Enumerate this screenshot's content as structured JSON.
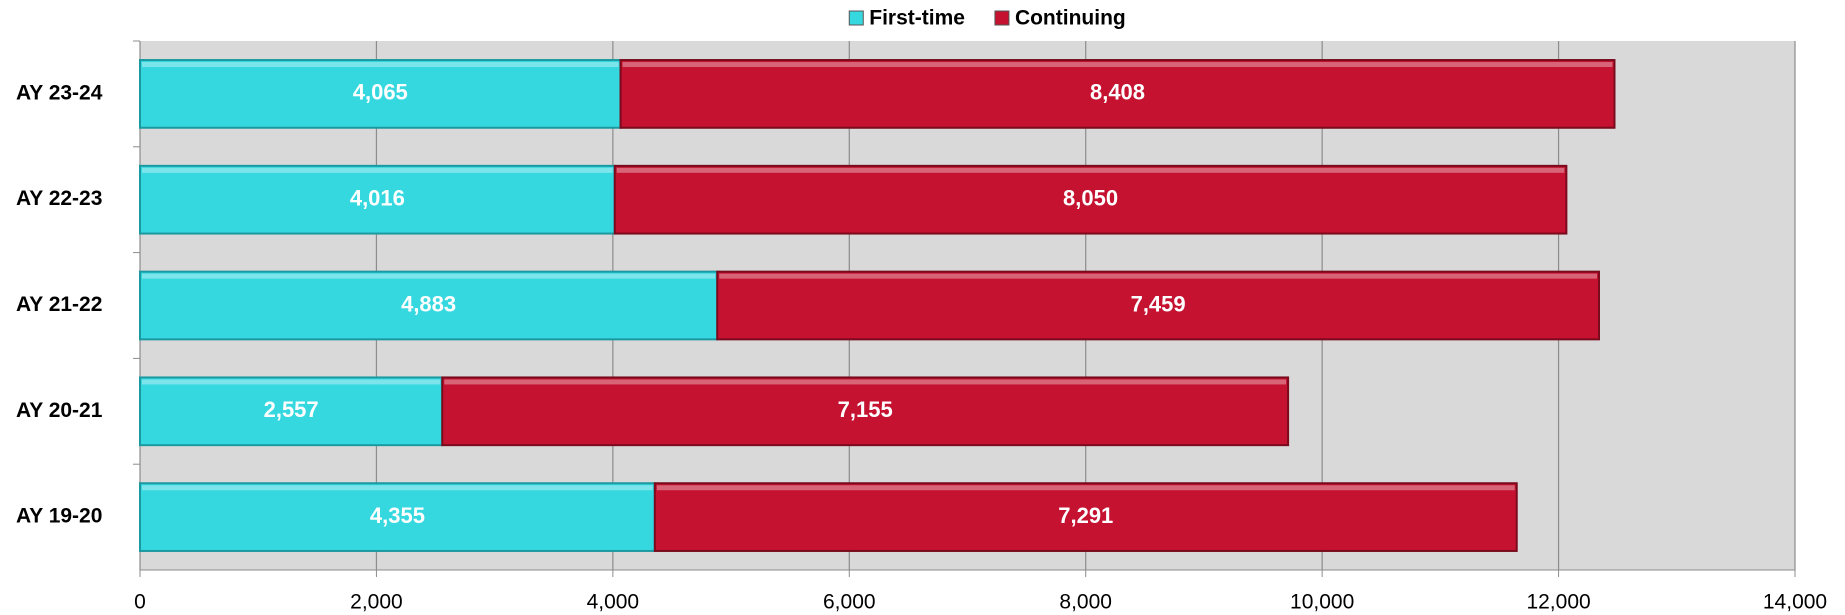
{
  "chart_data": {
    "type": "stacked-barh",
    "categories": [
      "AY 23-24",
      "AY 22-23",
      "AY 21-22",
      "AY 20-21",
      "AY 19-20"
    ],
    "series": [
      {
        "name": "First-time",
        "color": "#36d8e0",
        "values": [
          4065,
          4016,
          4883,
          2557,
          4355
        ],
        "value_labels": [
          "4,065",
          "4,016",
          "4,883",
          "2,557",
          "4,355"
        ]
      },
      {
        "name": "Continuing",
        "color": "#c41230",
        "values": [
          8408,
          8050,
          7459,
          7155,
          7291
        ],
        "value_labels": [
          "8,408",
          "8,050",
          "7,459",
          "7,155",
          "7,291"
        ]
      }
    ],
    "xlim": [
      0,
      14000
    ],
    "xticks": [
      0,
      {
        "value": 2000,
        "label": "2,000"
      },
      {
        "value": 4000,
        "label": "4,000"
      },
      {
        "value": 6000,
        "label": "6,000"
      },
      {
        "value": 8000,
        "label": "8,000"
      },
      {
        "value": 10000,
        "label": "10,000"
      },
      {
        "value": 12000,
        "label": "12,000"
      },
      {
        "value": 14000,
        "label": "14,000"
      }
    ],
    "grid": true,
    "legend": "top"
  }
}
